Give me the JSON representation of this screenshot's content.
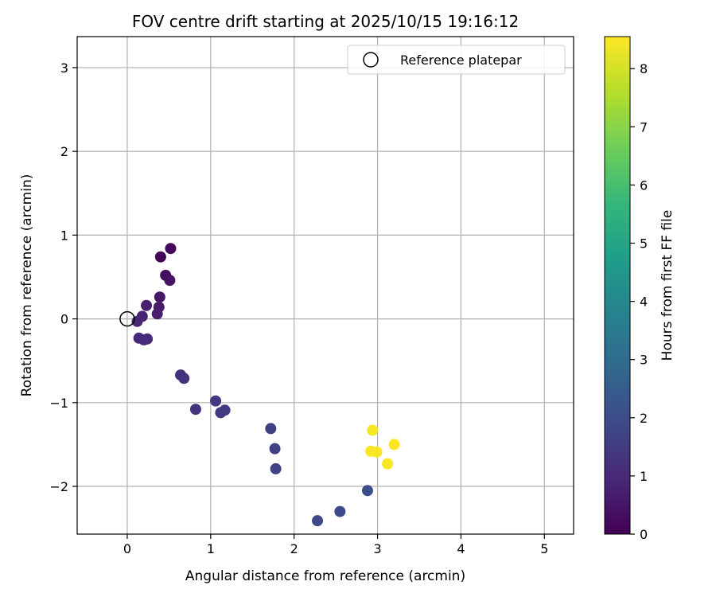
{
  "chart_data": {
    "type": "scatter",
    "title": "FOV centre drift starting at 2025/10/15 19:16:12",
    "xlabel": "Angular distance from reference (arcmin)",
    "ylabel": "Rotation from reference (arcmin)",
    "xlim": [
      -0.6,
      5.35
    ],
    "ylim": [
      -2.57,
      3.37
    ],
    "xticks": [
      0,
      1,
      2,
      3,
      4,
      5
    ],
    "yticks": [
      -2,
      -1,
      0,
      1,
      2,
      3
    ],
    "xtick_labels": [
      "0",
      "1",
      "2",
      "3",
      "4",
      "5"
    ],
    "ytick_labels": [
      "−2",
      "−1",
      "0",
      "1",
      "2",
      "3"
    ],
    "grid": true,
    "legend": {
      "placement": "top-right",
      "entries": [
        {
          "label": "Reference platepar",
          "marker": "open-circle",
          "color": "#000000"
        }
      ]
    },
    "reference_point": {
      "x": 0,
      "y": 0
    },
    "colorbar": {
      "label": "Hours from first FF file",
      "range": [
        0,
        8.55
      ],
      "ticks": [
        0,
        1,
        2,
        3,
        4,
        5,
        6,
        7,
        8
      ],
      "tick_labels": [
        "0",
        "1",
        "2",
        "3",
        "4",
        "5",
        "6",
        "7",
        "8"
      ],
      "colormap": "viridis"
    },
    "points": [
      {
        "x": 0.4,
        "y": 0.74,
        "hours": 0.1
      },
      {
        "x": 0.52,
        "y": 0.84,
        "hours": 0.2
      },
      {
        "x": 0.46,
        "y": 0.52,
        "hours": 0.3
      },
      {
        "x": 0.51,
        "y": 0.46,
        "hours": 0.45
      },
      {
        "x": 0.39,
        "y": 0.26,
        "hours": 0.55
      },
      {
        "x": 0.38,
        "y": 0.14,
        "hours": 0.65
      },
      {
        "x": 0.36,
        "y": 0.06,
        "hours": 0.7
      },
      {
        "x": 0.23,
        "y": 0.16,
        "hours": 0.75
      },
      {
        "x": 0.18,
        "y": 0.03,
        "hours": 0.85
      },
      {
        "x": 0.12,
        "y": -0.03,
        "hours": 0.9
      },
      {
        "x": 0.14,
        "y": -0.23,
        "hours": 1.0
      },
      {
        "x": 0.2,
        "y": -0.25,
        "hours": 1.0
      },
      {
        "x": 0.24,
        "y": -0.24,
        "hours": 1.05
      },
      {
        "x": 0.64,
        "y": -0.67,
        "hours": 1.2
      },
      {
        "x": 0.68,
        "y": -0.71,
        "hours": 1.25
      },
      {
        "x": 0.82,
        "y": -1.08,
        "hours": 1.3
      },
      {
        "x": 1.06,
        "y": -0.98,
        "hours": 1.4
      },
      {
        "x": 1.12,
        "y": -1.12,
        "hours": 1.45
      },
      {
        "x": 1.17,
        "y": -1.09,
        "hours": 1.5
      },
      {
        "x": 1.72,
        "y": -1.31,
        "hours": 1.6
      },
      {
        "x": 1.77,
        "y": -1.55,
        "hours": 1.65
      },
      {
        "x": 1.78,
        "y": -1.79,
        "hours": 1.7
      },
      {
        "x": 2.28,
        "y": -2.41,
        "hours": 1.85
      },
      {
        "x": 2.55,
        "y": -2.3,
        "hours": 1.95
      },
      {
        "x": 2.88,
        "y": -2.05,
        "hours": 2.05
      },
      {
        "x": 2.94,
        "y": -1.33,
        "hours": 8.45
      },
      {
        "x": 2.92,
        "y": -1.58,
        "hours": 8.5
      },
      {
        "x": 2.99,
        "y": -1.59,
        "hours": 8.5
      },
      {
        "x": 3.12,
        "y": -1.73,
        "hours": 8.5
      },
      {
        "x": 3.2,
        "y": -1.5,
        "hours": 8.55
      }
    ]
  }
}
